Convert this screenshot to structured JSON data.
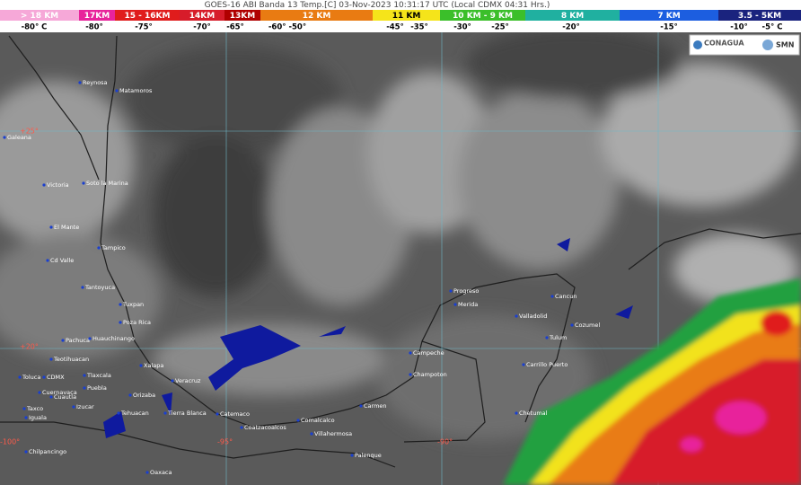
{
  "header": {
    "title": "GOES-16 ABI Banda 13 Temp.[C] 03-Nov-2023 10:31:17 UTC (Local CDMX  04:31 Hrs.)"
  },
  "legend": {
    "altitudes": [
      "> 18 KM",
      "17KM",
      "15 - 16KM",
      "14KM",
      "13KM",
      "12 KM",
      "11 KM",
      "10 KM - 9 KM",
      "8 KM",
      "7 KM",
      "3.5 - 5KM"
    ],
    "temperatures": [
      "-80° C",
      "-80°",
      "-75°",
      "-70°",
      "-65°",
      "-60° -50°",
      "-45°",
      "-35°",
      "-30°",
      "-25°",
      "-20°",
      "-15°",
      "-10°",
      "-5° C"
    ]
  },
  "logos": [
    "CONAGUA",
    "SMN"
  ],
  "grid_labels": [
    "+25°",
    "+20°",
    "-100°",
    "-95°",
    "-90°"
  ],
  "cities": [
    "Reynosa",
    "Matamoros",
    "Galeana",
    "Victoria",
    "Soto la Marina",
    "El Mante",
    "Tampico",
    "Cd Valle",
    "Tantoyuca",
    "Tuxpan",
    "Poza Rica",
    "Pachuca",
    "Huauchinango",
    "Teotihuacan",
    "Toluca",
    "CDMX",
    "Tlaxcala",
    "Puebla",
    "Cuernavaca",
    "Cuautla",
    "Xalapa",
    "Veracruz",
    "Orizaba",
    "Taxco",
    "Iguala",
    "Izucar",
    "Tehuacan",
    "Tierra Blanca",
    "Catemaco",
    "Coatzacoalcos",
    "Comalcalco",
    "Villahermosa",
    "Carmen",
    "Campeche",
    "Champoton",
    "Progreso",
    "Merida",
    "Valladolid",
    "Cancun",
    "Cozumel",
    "Tulum",
    "Carrillo Puerto",
    "Chetumal",
    "Palenque",
    "Oaxaca",
    "Chilpancingo"
  ]
}
